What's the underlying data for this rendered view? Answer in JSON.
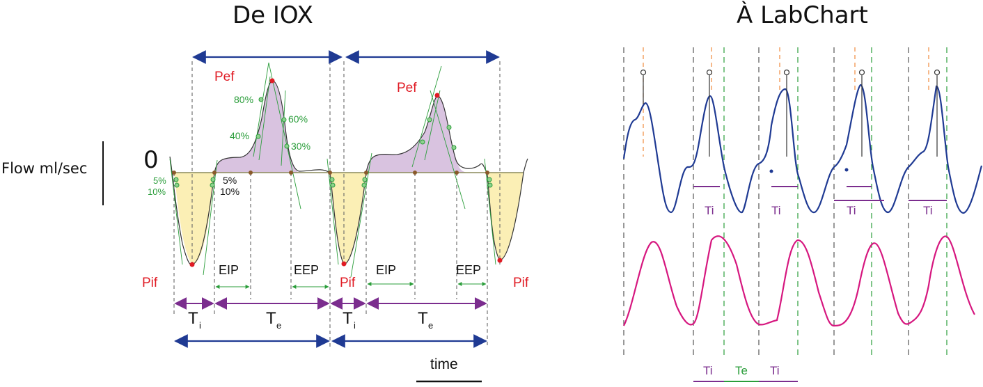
{
  "titles": {
    "left": "De IOX",
    "right": "À LabChart"
  },
  "y_axis": {
    "label": "Flow ml/sec",
    "zero": "0"
  },
  "left_panel": {
    "peak_expiratory_label": "Pef",
    "peak_inspiratory_label": "Pif",
    "expiratory_percentages": [
      "80%",
      "60%",
      "40%",
      "30%"
    ],
    "inspiratory_percentages": [
      "5%",
      "10%"
    ],
    "pause_labels": {
      "end_inspiratory": "EIP",
      "end_expiratory": "EEP"
    },
    "phase_labels": {
      "ti_main": "T",
      "ti_sub": "i",
      "te_main": "T",
      "te_sub": "e"
    },
    "time_label": "time"
  },
  "right_panel": {
    "ti_label": "Ti",
    "te_label": "Te"
  },
  "colors": {
    "navy_arrow": "#1f3a93",
    "purple_arrow": "#7b2d8e",
    "red_label": "#e01b24",
    "green_marker": "#2a9d3a",
    "blue_trace": "#1f3a93",
    "magenta_trace": "#d6177f",
    "expiratory_fill": "#d9c3e0",
    "inspiratory_fill": "#fbefb5",
    "orange_dash": "#f08a3c"
  }
}
